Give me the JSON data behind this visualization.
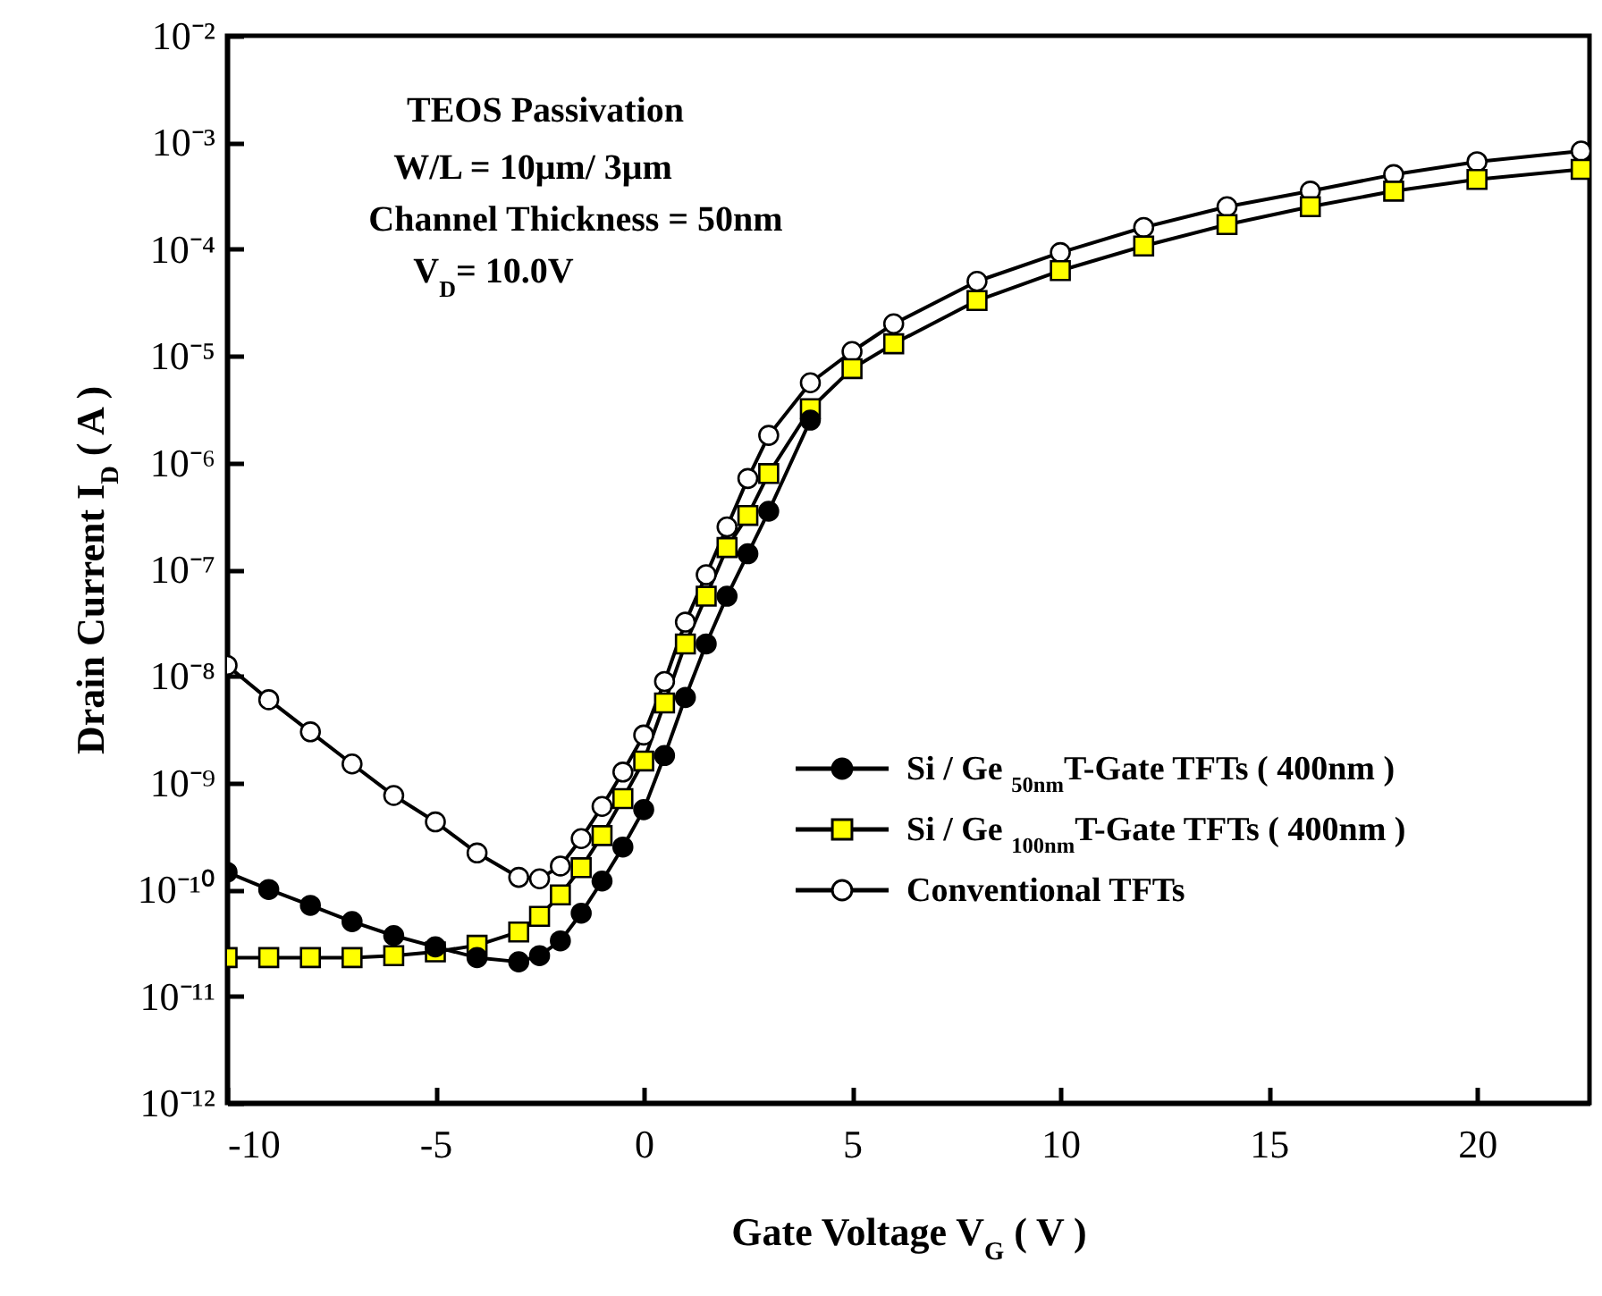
{
  "chart_data": {
    "type": "line",
    "xlabel": "Gate Voltage V$_{G}$ ( V )",
    "ylabel": "Drain Current I$_{D}$ ( A )",
    "annotations": [
      "TEOS Passivation",
      "W/L = 10μm/ 3μm",
      "Channel Thickness = 50nm",
      "V$_{D}$= 10.0V"
    ],
    "x": [
      -10,
      -9,
      -8,
      -7,
      -6,
      -5,
      -4,
      -3,
      -2.5,
      -2,
      -1.5,
      -1,
      -0.5,
      0,
      0.5,
      1,
      1.5,
      2,
      2.5,
      3,
      4,
      5,
      6,
      8,
      10,
      12,
      14,
      16,
      18,
      20,
      22.5
    ],
    "series": [
      {
        "name": "Si / Ge $_{50nm}$T-Gate TFTs ( 400nm )",
        "color": "#000000",
        "marker": "circle",
        "values": [
          1.45e-10,
          1e-10,
          7.1e-11,
          5e-11,
          3.7e-11,
          2.9e-11,
          2.3e-11,
          2.1e-11,
          2.4e-11,
          3.3e-11,
          6e-11,
          1.2e-10,
          2.5e-10,
          5.6e-10,
          1.8e-09,
          6.3e-09,
          2e-08,
          5.6e-08,
          1.4e-07,
          3.5e-07,
          2.5e-06,
          null,
          null,
          null,
          null,
          null,
          null,
          null,
          null,
          null,
          null
        ]
      },
      {
        "name": "Si / Ge $_{100nm}$T-Gate TFTs ( 400nm )",
        "color": "#ffff00",
        "marker": "square",
        "values": [
          2.3e-11,
          2.3e-11,
          2.3e-11,
          2.3e-11,
          2.4e-11,
          2.6e-11,
          3e-11,
          4e-11,
          5.6e-11,
          8.9e-11,
          1.6e-10,
          3.2e-10,
          7.1e-10,
          1.6e-09,
          5.6e-09,
          2e-08,
          5.6e-08,
          1.6e-07,
          3.2e-07,
          7.9e-07,
          3.2e-06,
          7.6e-06,
          1.3e-05,
          3.3e-05,
          6.3e-05,
          0.000107,
          0.00017,
          0.00025,
          0.00035,
          0.00045,
          0.00056
        ]
      },
      {
        "name": "Conventional TFTs",
        "color": "#ffffff",
        "marker": "circle",
        "values": [
          1.26e-08,
          6e-09,
          3e-09,
          1.5e-09,
          7.6e-10,
          4.3e-10,
          2.2e-10,
          1.3e-10,
          1.26e-10,
          1.66e-10,
          3e-10,
          6e-10,
          1.26e-09,
          2.8e-09,
          8.9e-09,
          3.2e-08,
          8.9e-08,
          2.5e-07,
          7.1e-07,
          1.8e-06,
          5.6e-06,
          1.1e-05,
          2e-05,
          5e-05,
          9.3e-05,
          0.00016,
          0.00025,
          0.00035,
          0.0005,
          0.00066,
          0.00083
        ]
      }
    ],
    "xlim": [
      -10,
      22.7
    ],
    "xticks": [
      -10,
      -5,
      0,
      5,
      10,
      15,
      20
    ],
    "log": "y",
    "ylim": [
      1e-12,
      0.01
    ],
    "yticks": [
      {
        "value": 1e-12,
        "label": "10⁻¹²"
      },
      {
        "value": 1e-11,
        "label": "10⁻¹¹"
      },
      {
        "value": 1e-10,
        "label": "10⁻¹⁰"
      },
      {
        "value": 1e-09,
        "label": "10⁻⁹"
      },
      {
        "value": 1e-08,
        "label": "10⁻⁸"
      },
      {
        "value": 1e-07,
        "label": "10⁻⁷"
      },
      {
        "value": 1e-06,
        "label": "10⁻⁶"
      },
      {
        "value": 1e-05,
        "label": "10⁻⁵"
      },
      {
        "value": 0.0001,
        "label": "10⁻⁴"
      },
      {
        "value": 0.001,
        "label": "10⁻³"
      },
      {
        "value": 0.01,
        "label": "10⁻²"
      }
    ],
    "legend": "bottom right",
    "grid": false
  }
}
